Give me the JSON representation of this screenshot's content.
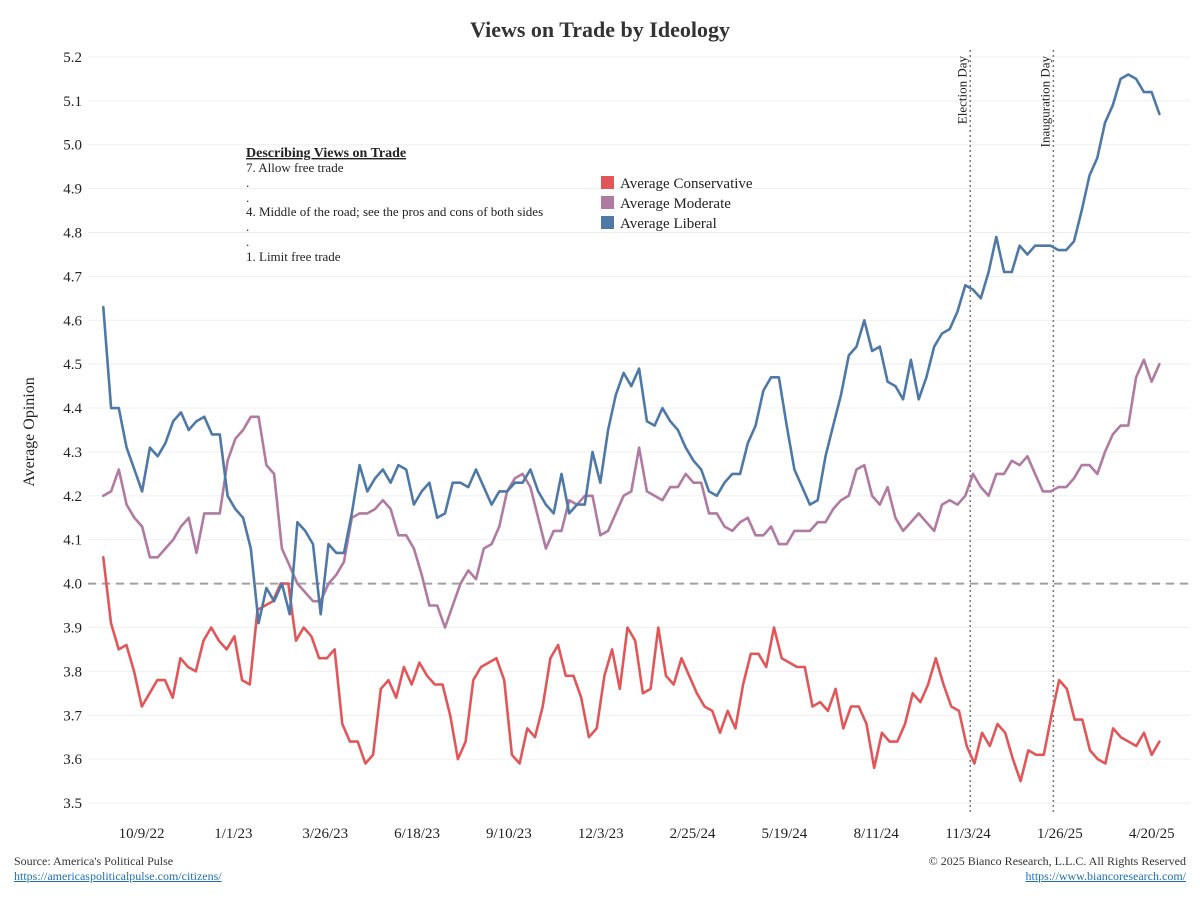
{
  "chart_data": {
    "type": "line",
    "title": "Views on Trade by Ideology",
    "xlabel": "",
    "ylabel": "Average Opinion",
    "ylim": [
      3.475,
      5.225
    ],
    "yticks": [
      "3.5",
      "3.6",
      "3.7",
      "3.8",
      "3.9",
      "4.0",
      "4.1",
      "4.2",
      "4.3",
      "4.4",
      "4.5",
      "4.6",
      "4.7",
      "4.8",
      "4.9",
      "5.0",
      "5.1",
      "5.2"
    ],
    "xlim": [
      "2022-08-21",
      "2025-05-25"
    ],
    "xticks": [
      {
        "date": "2022-10-09",
        "label": "10/9/22"
      },
      {
        "date": "2023-01-01",
        "label": "1/1/23"
      },
      {
        "date": "2023-03-26",
        "label": "3/26/23"
      },
      {
        "date": "2023-06-18",
        "label": "6/18/23"
      },
      {
        "date": "2023-09-10",
        "label": "9/10/23"
      },
      {
        "date": "2023-12-03",
        "label": "12/3/23"
      },
      {
        "date": "2024-02-25",
        "label": "2/25/24"
      },
      {
        "date": "2024-05-19",
        "label": "5/19/24"
      },
      {
        "date": "2024-08-11",
        "label": "8/11/24"
      },
      {
        "date": "2024-11-03",
        "label": "11/3/24"
      },
      {
        "date": "2025-01-26",
        "label": "1/26/25"
      },
      {
        "date": "2025-04-20",
        "label": "4/20/25"
      }
    ],
    "reference_line": 4.0,
    "event_lines": [
      {
        "date": "2024-11-05",
        "label": "Election Day"
      },
      {
        "date": "2025-01-20",
        "label": "Inauguration Day"
      }
    ],
    "grid": "horizontal",
    "legend_position": "top-center",
    "x_start": "2022-09-04",
    "x_end": "2025-04-27",
    "series": [
      {
        "name": "Average Conservative",
        "color": "#e15759",
        "values": [
          4.06,
          3.91,
          3.85,
          3.86,
          3.8,
          3.72,
          3.75,
          3.78,
          3.78,
          3.74,
          3.83,
          3.81,
          3.8,
          3.87,
          3.9,
          3.87,
          3.85,
          3.88,
          3.78,
          3.77,
          3.94,
          3.95,
          3.96,
          4.0,
          4.0,
          3.87,
          3.9,
          3.88,
          3.83,
          3.83,
          3.85,
          3.68,
          3.64,
          3.64,
          3.59,
          3.61,
          3.76,
          3.78,
          3.74,
          3.81,
          3.77,
          3.82,
          3.79,
          3.77,
          3.77,
          3.7,
          3.6,
          3.64,
          3.78,
          3.81,
          3.82,
          3.83,
          3.78,
          3.61,
          3.59,
          3.67,
          3.65,
          3.72,
          3.83,
          3.86,
          3.79,
          3.79,
          3.74,
          3.65,
          3.67,
          3.79,
          3.85,
          3.76,
          3.9,
          3.87,
          3.75,
          3.76,
          3.9,
          3.79,
          3.77,
          3.83,
          3.79,
          3.75,
          3.72,
          3.71,
          3.66,
          3.71,
          3.67,
          3.77,
          3.84,
          3.84,
          3.81,
          3.9,
          3.83,
          3.82,
          3.81,
          3.81,
          3.72,
          3.73,
          3.71,
          3.76,
          3.67,
          3.72,
          3.72,
          3.68,
          3.58,
          3.66,
          3.64,
          3.64,
          3.68,
          3.75,
          3.73,
          3.77,
          3.83,
          3.77,
          3.72,
          3.71,
          3.63,
          3.59,
          3.66,
          3.63,
          3.68,
          3.66,
          3.6,
          3.55,
          3.62,
          3.61,
          3.61,
          3.7,
          3.78,
          3.76,
          3.69,
          3.69,
          3.62,
          3.6,
          3.59,
          3.67,
          3.65,
          3.64,
          3.63,
          3.66,
          3.61,
          3.64
        ]
      },
      {
        "name": "Average Moderate",
        "color": "#b07aa1",
        "values": [
          4.2,
          4.21,
          4.26,
          4.18,
          4.15,
          4.13,
          4.06,
          4.06,
          4.08,
          4.1,
          4.13,
          4.15,
          4.07,
          4.16,
          4.16,
          4.16,
          4.28,
          4.33,
          4.35,
          4.38,
          4.38,
          4.27,
          4.25,
          4.08,
          4.04,
          4.0,
          3.98,
          3.96,
          3.96,
          4.0,
          4.02,
          4.05,
          4.15,
          4.16,
          4.16,
          4.17,
          4.19,
          4.17,
          4.11,
          4.11,
          4.08,
          4.02,
          3.95,
          3.95,
          3.9,
          3.95,
          4.0,
          4.03,
          4.01,
          4.08,
          4.09,
          4.13,
          4.21,
          4.24,
          4.25,
          4.22,
          4.15,
          4.08,
          4.12,
          4.12,
          4.19,
          4.18,
          4.2,
          4.2,
          4.11,
          4.12,
          4.16,
          4.2,
          4.21,
          4.31,
          4.21,
          4.2,
          4.19,
          4.22,
          4.22,
          4.25,
          4.23,
          4.23,
          4.16,
          4.16,
          4.13,
          4.12,
          4.14,
          4.15,
          4.11,
          4.11,
          4.13,
          4.09,
          4.09,
          4.12,
          4.12,
          4.12,
          4.14,
          4.14,
          4.17,
          4.19,
          4.2,
          4.26,
          4.27,
          4.2,
          4.18,
          4.22,
          4.15,
          4.12,
          4.14,
          4.16,
          4.14,
          4.12,
          4.18,
          4.19,
          4.18,
          4.2,
          4.25,
          4.22,
          4.2,
          4.25,
          4.25,
          4.28,
          4.27,
          4.29,
          4.25,
          4.21,
          4.21,
          4.22,
          4.22,
          4.24,
          4.27,
          4.27,
          4.25,
          4.3,
          4.34,
          4.36,
          4.36,
          4.47,
          4.51,
          4.46,
          4.5
        ]
      },
      {
        "name": "Average Liberal",
        "color": "#4e79a7",
        "values": [
          4.63,
          4.4,
          4.4,
          4.31,
          4.26,
          4.21,
          4.31,
          4.29,
          4.32,
          4.37,
          4.39,
          4.35,
          4.37,
          4.38,
          4.34,
          4.34,
          4.2,
          4.17,
          4.15,
          4.08,
          3.91,
          3.99,
          3.96,
          4.0,
          3.93,
          4.14,
          4.12,
          4.09,
          3.93,
          4.09,
          4.07,
          4.07,
          4.16,
          4.27,
          4.21,
          4.24,
          4.26,
          4.23,
          4.27,
          4.26,
          4.18,
          4.21,
          4.23,
          4.15,
          4.16,
          4.23,
          4.23,
          4.22,
          4.26,
          4.22,
          4.18,
          4.21,
          4.21,
          4.23,
          4.23,
          4.26,
          4.21,
          4.18,
          4.16,
          4.25,
          4.16,
          4.18,
          4.18,
          4.3,
          4.23,
          4.35,
          4.43,
          4.48,
          4.45,
          4.49,
          4.37,
          4.36,
          4.4,
          4.37,
          4.35,
          4.31,
          4.28,
          4.26,
          4.21,
          4.2,
          4.23,
          4.25,
          4.25,
          4.32,
          4.36,
          4.44,
          4.47,
          4.47,
          4.36,
          4.26,
          4.22,
          4.18,
          4.19,
          4.29,
          4.36,
          4.43,
          4.52,
          4.54,
          4.6,
          4.53,
          4.54,
          4.46,
          4.45,
          4.42,
          4.51,
          4.42,
          4.47,
          4.54,
          4.57,
          4.58,
          4.62,
          4.68,
          4.67,
          4.65,
          4.71,
          4.79,
          4.71,
          4.71,
          4.77,
          4.75,
          4.77,
          4.77,
          4.77,
          4.76,
          4.76,
          4.78,
          4.85,
          4.93,
          4.97,
          5.05,
          5.09,
          5.15,
          5.16,
          5.15,
          5.12,
          5.12,
          5.07
        ]
      }
    ],
    "annotation": {
      "heading": "Describing Views on Trade",
      "lines": [
        "7. Allow free trade",
        ".",
        ".",
        "4. Middle of the road; see the pros and cons of both sides",
        ".",
        ".",
        "1. Limit free trade"
      ]
    }
  },
  "footer": {
    "source": "Source: America's Political Pulse",
    "source_link": "https://americaspoliticalpulse.com/citizens/",
    "copyright": "© 2025 Bianco Research, L.L.C. All Rights Reserved",
    "site_link": "https://www.biancoresearch.com/"
  }
}
